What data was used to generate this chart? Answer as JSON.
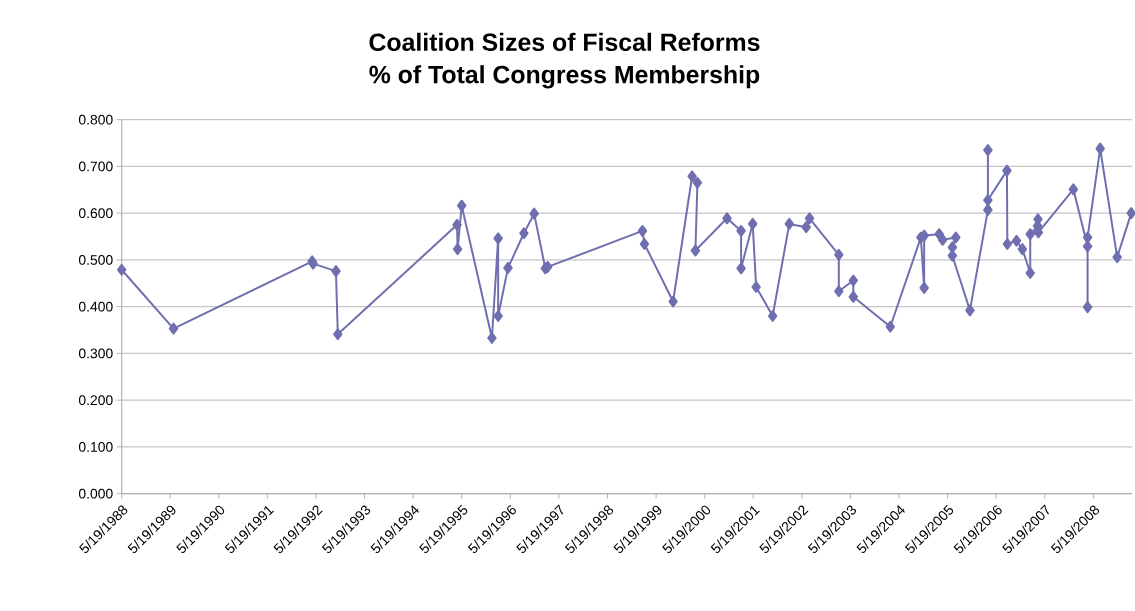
{
  "chart_data": {
    "type": "line",
    "title": "Coalition Sizes of Fiscal Reforms",
    "subtitle": "% of Total Congress Membership",
    "x": [
      "1988-05-19",
      "1989-06-13",
      "1992-04-20",
      "1992-04-27",
      "1992-10-16",
      "1992-10-30",
      "1995-04-14",
      "1995-04-18",
      "1995-05-19",
      "1996-01-01",
      "1996-02-17",
      "1996-02-17",
      "1996-05-01",
      "1996-08-29",
      "1996-11-14",
      "1997-02-06",
      "1997-02-24",
      "1999-02-06",
      "1999-02-21",
      "1999-09-24",
      "2000-02-14",
      "2000-03-25",
      "2000-03-10",
      "2000-11-03",
      "2001-02-17",
      "2001-02-17",
      "2001-05-15",
      "2001-06-10",
      "2001-10-12",
      "2002-02-14",
      "2002-06-21",
      "2002-07-16",
      "2003-02-21",
      "2003-02-21",
      "2003-06-10",
      "2003-06-10",
      "2004-03-14",
      "2004-10-30",
      "2004-11-24",
      "2004-11-24",
      "2005-03-17",
      "2005-04-12",
      "2005-07-20",
      "2005-06-24",
      "2005-06-24",
      "2005-11-03",
      "2006-03-18",
      "2006-03-18",
      "2006-03-18",
      "2006-08-08",
      "2006-08-11",
      "2006-10-19",
      "2006-12-02",
      "2007-01-30",
      "2007-01-30",
      "2007-03-26",
      "2007-03-29",
      "2007-04-01",
      "2007-12-20",
      "2008-04-05",
      "2008-04-05",
      "2008-04-05",
      "2008-07-09",
      "2008-11-14",
      "2009-02-28"
    ],
    "series": [
      {
        "color": "#6f6fb0",
        "values": [
          0.479,
          0.353,
          0.497,
          0.492,
          0.476,
          0.341,
          0.575,
          0.523,
          0.616,
          0.333,
          0.546,
          0.38,
          0.483,
          0.557,
          0.599,
          0.482,
          0.485,
          0.562,
          0.534,
          0.411,
          0.679,
          0.665,
          0.52,
          0.589,
          0.562,
          0.482,
          0.577,
          0.442,
          0.38,
          0.577,
          0.57,
          0.589,
          0.511,
          0.433,
          0.456,
          0.421,
          0.357,
          0.548,
          0.44,
          0.552,
          0.555,
          0.543,
          0.548,
          0.527,
          0.509,
          0.392,
          0.607,
          0.735,
          0.628,
          0.691,
          0.534,
          0.541,
          0.523,
          0.472,
          0.555,
          0.573,
          0.587,
          0.559,
          0.651,
          0.529,
          0.399,
          0.548,
          0.738,
          0.506,
          0.6
        ]
      }
    ],
    "xlim": [
      "1988-05-19",
      "2009-03-05"
    ],
    "xticks": [
      {
        "value": "1988-05-19",
        "label": "5/19/1988"
      },
      {
        "value": "1989-05-19",
        "label": "5/19/1989"
      },
      {
        "value": "1990-05-19",
        "label": "5/19/1990"
      },
      {
        "value": "1991-05-19",
        "label": "5/19/1991"
      },
      {
        "value": "1992-05-19",
        "label": "5/19/1992"
      },
      {
        "value": "1993-05-19",
        "label": "5/19/1993"
      },
      {
        "value": "1994-05-19",
        "label": "5/19/1994"
      },
      {
        "value": "1995-05-19",
        "label": "5/19/1995"
      },
      {
        "value": "1996-05-19",
        "label": "5/19/1996"
      },
      {
        "value": "1997-05-19",
        "label": "5/19/1997"
      },
      {
        "value": "1998-05-19",
        "label": "5/19/1998"
      },
      {
        "value": "1999-05-19",
        "label": "5/19/1999"
      },
      {
        "value": "2000-05-19",
        "label": "5/19/2000"
      },
      {
        "value": "2001-05-19",
        "label": "5/19/2001"
      },
      {
        "value": "2002-05-19",
        "label": "5/19/2002"
      },
      {
        "value": "2003-05-19",
        "label": "5/19/2003"
      },
      {
        "value": "2004-05-19",
        "label": "5/19/2004"
      },
      {
        "value": "2005-05-19",
        "label": "5/19/2005"
      },
      {
        "value": "2006-05-19",
        "label": "5/19/2006"
      },
      {
        "value": "2007-05-19",
        "label": "5/19/2007"
      },
      {
        "value": "2008-05-19",
        "label": "5/19/2008"
      }
    ],
    "ylim": [
      0,
      0.8
    ],
    "yticks": [
      {
        "value": 0,
        "label": "0.000"
      },
      {
        "value": 0.1,
        "label": "0.100"
      },
      {
        "value": 0.2,
        "label": "0.200"
      },
      {
        "value": 0.3,
        "label": "0.300"
      },
      {
        "value": 0.4,
        "label": "0.400"
      },
      {
        "value": 0.5,
        "label": "0.500"
      },
      {
        "value": 0.6,
        "label": "0.600"
      },
      {
        "value": 0.7,
        "label": "0.700"
      },
      {
        "value": 0.8,
        "label": "0.800"
      }
    ],
    "grid": "y",
    "marker": "diamond",
    "line_style": "solid"
  }
}
